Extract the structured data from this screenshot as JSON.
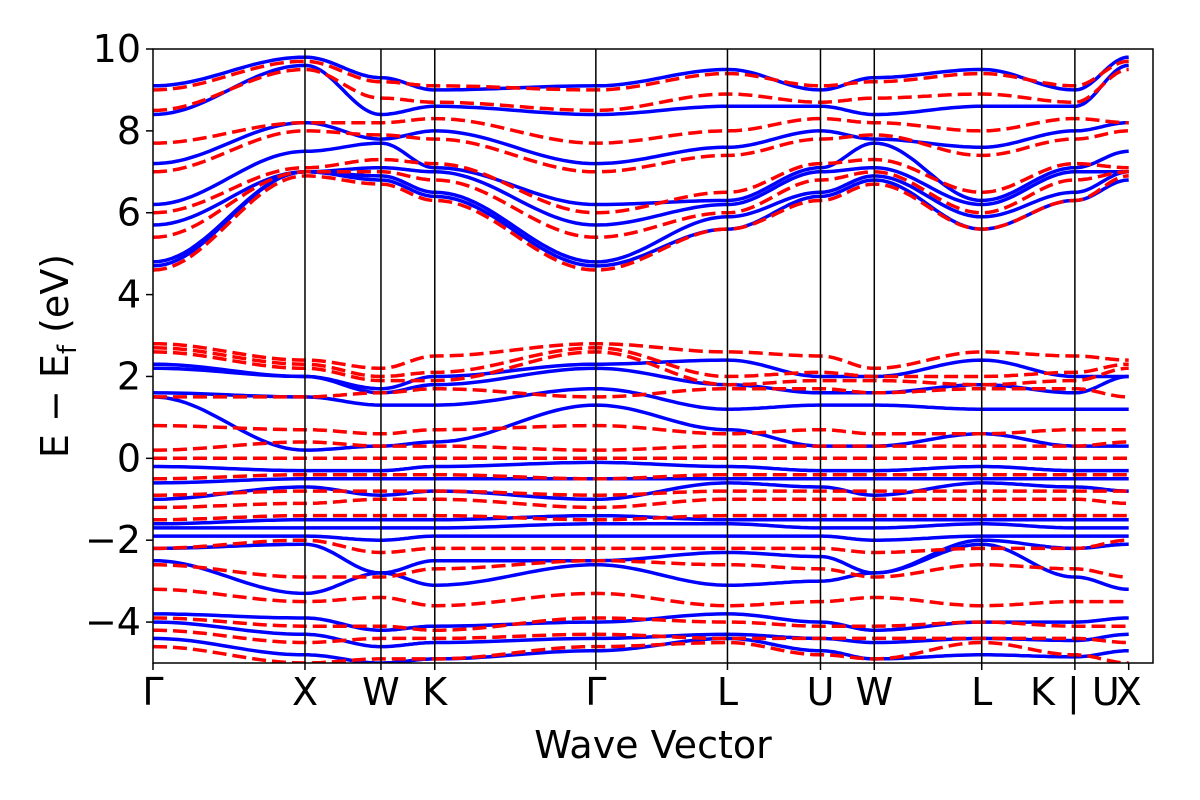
{
  "chart_data": {
    "type": "line",
    "title": "",
    "xlabel": "Wave Vector",
    "ylabel": "E − E",
    "ylabel_subscript": "f",
    "ylabel_unit": " (eV)",
    "ylim": [
      -5,
      10
    ],
    "yticks": [
      {
        "value": -4,
        "label": "−4"
      },
      {
        "value": -2,
        "label": "−2"
      },
      {
        "value": 0,
        "label": "0"
      },
      {
        "value": 2,
        "label": "2"
      },
      {
        "value": 4,
        "label": "4"
      },
      {
        "value": 6,
        "label": "6"
      },
      {
        "value": 8,
        "label": "8"
      },
      {
        "value": 10,
        "label": "10"
      }
    ],
    "xlim": [
      0,
      6.58
    ],
    "kpoints": [
      {
        "label": "Γ",
        "x": 0.0
      },
      {
        "label": "X",
        "x": 1.0
      },
      {
        "label": "W",
        "x": 1.5
      },
      {
        "label": "K",
        "x": 1.854
      },
      {
        "label": "Γ",
        "x": 2.914
      },
      {
        "label": "L",
        "x": 3.78
      },
      {
        "label": "U",
        "x": 4.392
      },
      {
        "label": "W",
        "x": 4.746
      },
      {
        "label": "L",
        "x": 5.453
      },
      {
        "label": "K | U",
        "x": 6.066
      },
      {
        "label": "X",
        "x": 6.42
      }
    ],
    "grid": false,
    "legend": "none",
    "series": [
      {
        "style": "solid",
        "color": "#0000ff",
        "bands": [
          [
            -4.4,
            -4.8,
            -5.0,
            -4.9,
            -4.7,
            -4.4,
            -4.7,
            -4.9,
            -4.8,
            -4.85,
            -4.7
          ],
          [
            -4.0,
            -4.3,
            -4.6,
            -4.5,
            -4.4,
            -4.3,
            -4.4,
            -4.5,
            -4.4,
            -4.45,
            -4.3
          ],
          [
            -3.8,
            -3.9,
            -4.2,
            -4.1,
            -4.0,
            -3.8,
            -4.0,
            -4.2,
            -4.0,
            -4.0,
            -3.9
          ],
          [
            -2.5,
            -3.3,
            -2.8,
            -3.1,
            -2.6,
            -3.1,
            -3.0,
            -2.8,
            -2.1,
            -2.9,
            -3.2
          ],
          [
            -2.2,
            -2.1,
            -2.8,
            -2.5,
            -2.5,
            -2.3,
            -2.4,
            -2.8,
            -2.0,
            -2.2,
            -2.1
          ],
          [
            -1.9,
            -1.9,
            -2.0,
            -1.9,
            -1.9,
            -1.9,
            -1.9,
            -2.0,
            -1.9,
            -1.9,
            -1.9
          ],
          [
            -1.7,
            -1.7,
            -1.7,
            -1.7,
            -1.6,
            -1.6,
            -1.7,
            -1.7,
            -1.6,
            -1.7,
            -1.7
          ],
          [
            -1.6,
            -1.5,
            -1.5,
            -1.5,
            -1.4,
            -1.5,
            -1.5,
            -1.5,
            -1.5,
            -1.5,
            -1.5
          ],
          [
            -1.0,
            -0.7,
            -0.9,
            -0.8,
            -1.0,
            -0.6,
            -0.7,
            -0.9,
            -0.6,
            -0.7,
            -0.8
          ],
          [
            -0.6,
            -0.5,
            -0.5,
            -0.5,
            -0.5,
            -0.5,
            -0.5,
            -0.5,
            -0.5,
            -0.5,
            -0.5
          ],
          [
            -0.2,
            -0.3,
            -0.3,
            -0.2,
            -0.1,
            -0.2,
            -0.3,
            -0.3,
            -0.2,
            -0.3,
            -0.3
          ],
          [
            1.5,
            0.2,
            0.3,
            0.4,
            1.3,
            0.7,
            0.3,
            0.3,
            0.6,
            0.3,
            0.3
          ],
          [
            1.6,
            1.5,
            1.3,
            1.3,
            1.7,
            1.2,
            1.3,
            1.3,
            1.2,
            1.2,
            1.2
          ],
          [
            2.2,
            2.0,
            1.6,
            1.8,
            2.2,
            1.8,
            1.6,
            1.6,
            1.8,
            1.6,
            2.0
          ],
          [
            2.3,
            2.0,
            1.7,
            2.0,
            2.3,
            2.4,
            2.0,
            2.0,
            2.4,
            2.0,
            2.0
          ],
          [
            4.7,
            7.0,
            6.8,
            6.4,
            4.7,
            5.6,
            6.4,
            6.8,
            5.6,
            6.3,
            6.8
          ],
          [
            4.8,
            7.0,
            6.9,
            6.5,
            4.8,
            5.9,
            6.5,
            6.9,
            5.9,
            6.5,
            7.0
          ],
          [
            5.7,
            7.0,
            7.1,
            7.0,
            5.7,
            6.2,
            7.0,
            7.1,
            6.2,
            7.0,
            7.0
          ],
          [
            6.2,
            7.5,
            7.7,
            7.1,
            6.2,
            6.3,
            7.1,
            7.7,
            6.3,
            7.1,
            7.5
          ],
          [
            7.2,
            8.2,
            7.8,
            8.0,
            7.2,
            7.6,
            8.0,
            7.8,
            7.6,
            8.0,
            8.2
          ],
          [
            8.4,
            9.6,
            8.4,
            8.6,
            8.4,
            8.6,
            8.6,
            8.4,
            8.6,
            8.6,
            9.6
          ],
          [
            9.1,
            9.8,
            9.3,
            9.0,
            9.1,
            9.5,
            9.0,
            9.3,
            9.5,
            9.0,
            9.8
          ]
        ]
      },
      {
        "style": "dashed",
        "color": "#ff0000",
        "bands": [
          [
            -4.6,
            -5.0,
            -4.9,
            -4.9,
            -4.6,
            -4.5,
            -4.8,
            -4.9,
            -4.5,
            -4.8,
            -5.0
          ],
          [
            -4.2,
            -4.5,
            -4.4,
            -4.4,
            -4.3,
            -4.4,
            -4.4,
            -4.4,
            -4.4,
            -4.4,
            -4.5
          ],
          [
            -3.9,
            -4.1,
            -4.1,
            -4.2,
            -3.9,
            -4.0,
            -4.1,
            -4.1,
            -4.0,
            -4.1,
            -4.1
          ],
          [
            -3.2,
            -3.5,
            -3.4,
            -3.6,
            -3.3,
            -3.6,
            -3.5,
            -3.4,
            -3.6,
            -3.5,
            -3.5
          ],
          [
            -2.6,
            -2.9,
            -2.9,
            -2.7,
            -2.5,
            -2.6,
            -2.7,
            -2.9,
            -2.6,
            -2.7,
            -2.9
          ],
          [
            -2.2,
            -2.0,
            -2.3,
            -2.2,
            -2.2,
            -2.2,
            -2.2,
            -2.3,
            -2.2,
            -2.2,
            -2.0
          ],
          [
            -1.5,
            -1.4,
            -1.4,
            -1.4,
            -1.5,
            -1.4,
            -1.4,
            -1.4,
            -1.4,
            -1.4,
            -1.4
          ],
          [
            -1.2,
            -1.1,
            -1.0,
            -1.0,
            -1.2,
            -1.0,
            -1.0,
            -1.0,
            -1.0,
            -1.0,
            -1.1
          ],
          [
            -0.9,
            -0.8,
            -0.8,
            -0.8,
            -0.9,
            -0.8,
            -0.8,
            -0.8,
            -0.8,
            -0.8,
            -0.8
          ],
          [
            -0.5,
            -0.4,
            -0.4,
            -0.4,
            -0.5,
            -0.4,
            -0.4,
            -0.4,
            -0.4,
            -0.4,
            -0.4
          ],
          [
            0.0,
            0.0,
            0.0,
            0.0,
            0.0,
            0.0,
            0.0,
            0.0,
            0.0,
            0.0,
            0.0
          ],
          [
            0.2,
            0.4,
            0.3,
            0.3,
            0.2,
            0.3,
            0.3,
            0.3,
            0.3,
            0.3,
            0.4
          ],
          [
            0.8,
            0.7,
            0.6,
            0.7,
            0.8,
            0.6,
            0.7,
            0.6,
            0.6,
            0.7,
            0.7
          ],
          [
            1.5,
            1.5,
            1.6,
            1.7,
            1.5,
            1.7,
            1.7,
            1.6,
            1.7,
            1.7,
            1.5
          ],
          [
            2.6,
            2.2,
            1.9,
            1.9,
            2.6,
            1.8,
            1.9,
            1.9,
            1.8,
            1.9,
            2.2
          ],
          [
            2.7,
            2.3,
            2.0,
            2.1,
            2.7,
            2.0,
            2.1,
            2.0,
            2.0,
            2.1,
            2.3
          ],
          [
            2.8,
            2.4,
            2.2,
            2.5,
            2.8,
            2.6,
            2.5,
            2.2,
            2.6,
            2.5,
            2.4
          ],
          [
            4.6,
            6.9,
            6.7,
            6.3,
            4.6,
            5.6,
            6.3,
            6.7,
            5.6,
            6.3,
            6.9
          ],
          [
            5.4,
            7.0,
            7.0,
            6.8,
            5.4,
            6.0,
            6.8,
            7.0,
            6.0,
            6.8,
            7.0
          ],
          [
            6.0,
            7.1,
            7.3,
            7.2,
            6.0,
            6.5,
            7.2,
            7.3,
            6.5,
            7.2,
            7.1
          ],
          [
            7.0,
            8.0,
            7.9,
            7.8,
            7.0,
            7.4,
            7.8,
            7.9,
            7.4,
            7.8,
            8.0
          ],
          [
            7.7,
            8.2,
            8.2,
            8.3,
            7.7,
            8.0,
            8.3,
            8.2,
            8.0,
            8.3,
            8.2
          ],
          [
            8.5,
            9.5,
            8.8,
            8.7,
            8.5,
            8.9,
            8.7,
            8.8,
            8.9,
            8.7,
            9.5
          ],
          [
            9.0,
            9.7,
            9.2,
            9.1,
            9.0,
            9.4,
            9.1,
            9.2,
            9.4,
            9.1,
            9.7
          ]
        ]
      }
    ]
  }
}
